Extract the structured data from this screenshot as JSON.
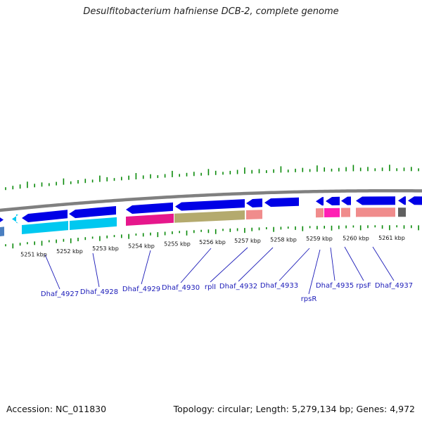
{
  "title": "Desulfitobacterium hafniense DCB-2, complete genome",
  "footer": {
    "accession": "Accession: NC_011830",
    "topology": "Topology: circular; Length: 5,279,134 bp; Genes: 4,972"
  },
  "colors": {
    "backbone": "#808080",
    "forward_cds": "#0000e6",
    "reverse_cds": "#00c8f0",
    "magenta": "#e6178c",
    "olive": "#b4aa6e",
    "salmon": "#f08c8c",
    "hot_pink": "#ff1fb4",
    "gray_feature": "#606060",
    "gc_skew": "#0a8a0a",
    "label": "#1a1ab8"
  },
  "scale_ticks": [
    "5251 kbp",
    "5252 kbp",
    "5253 kbp",
    "5254 kbp",
    "5255 kbp",
    "5256 kbp",
    "5257 kbp",
    "5258 kbp",
    "5259 kbp",
    "5260 kbp",
    "5261 kbp"
  ],
  "gene_labels": [
    "Dhaf_4927",
    "Dhaf_4928",
    "Dhaf_4929",
    "Dhaf_4930",
    "rplI",
    "Dhaf_4932",
    "Dhaf_4933",
    "rpsR",
    "Dhaf_4935",
    "rpsF",
    "Dhaf_4937"
  ]
}
